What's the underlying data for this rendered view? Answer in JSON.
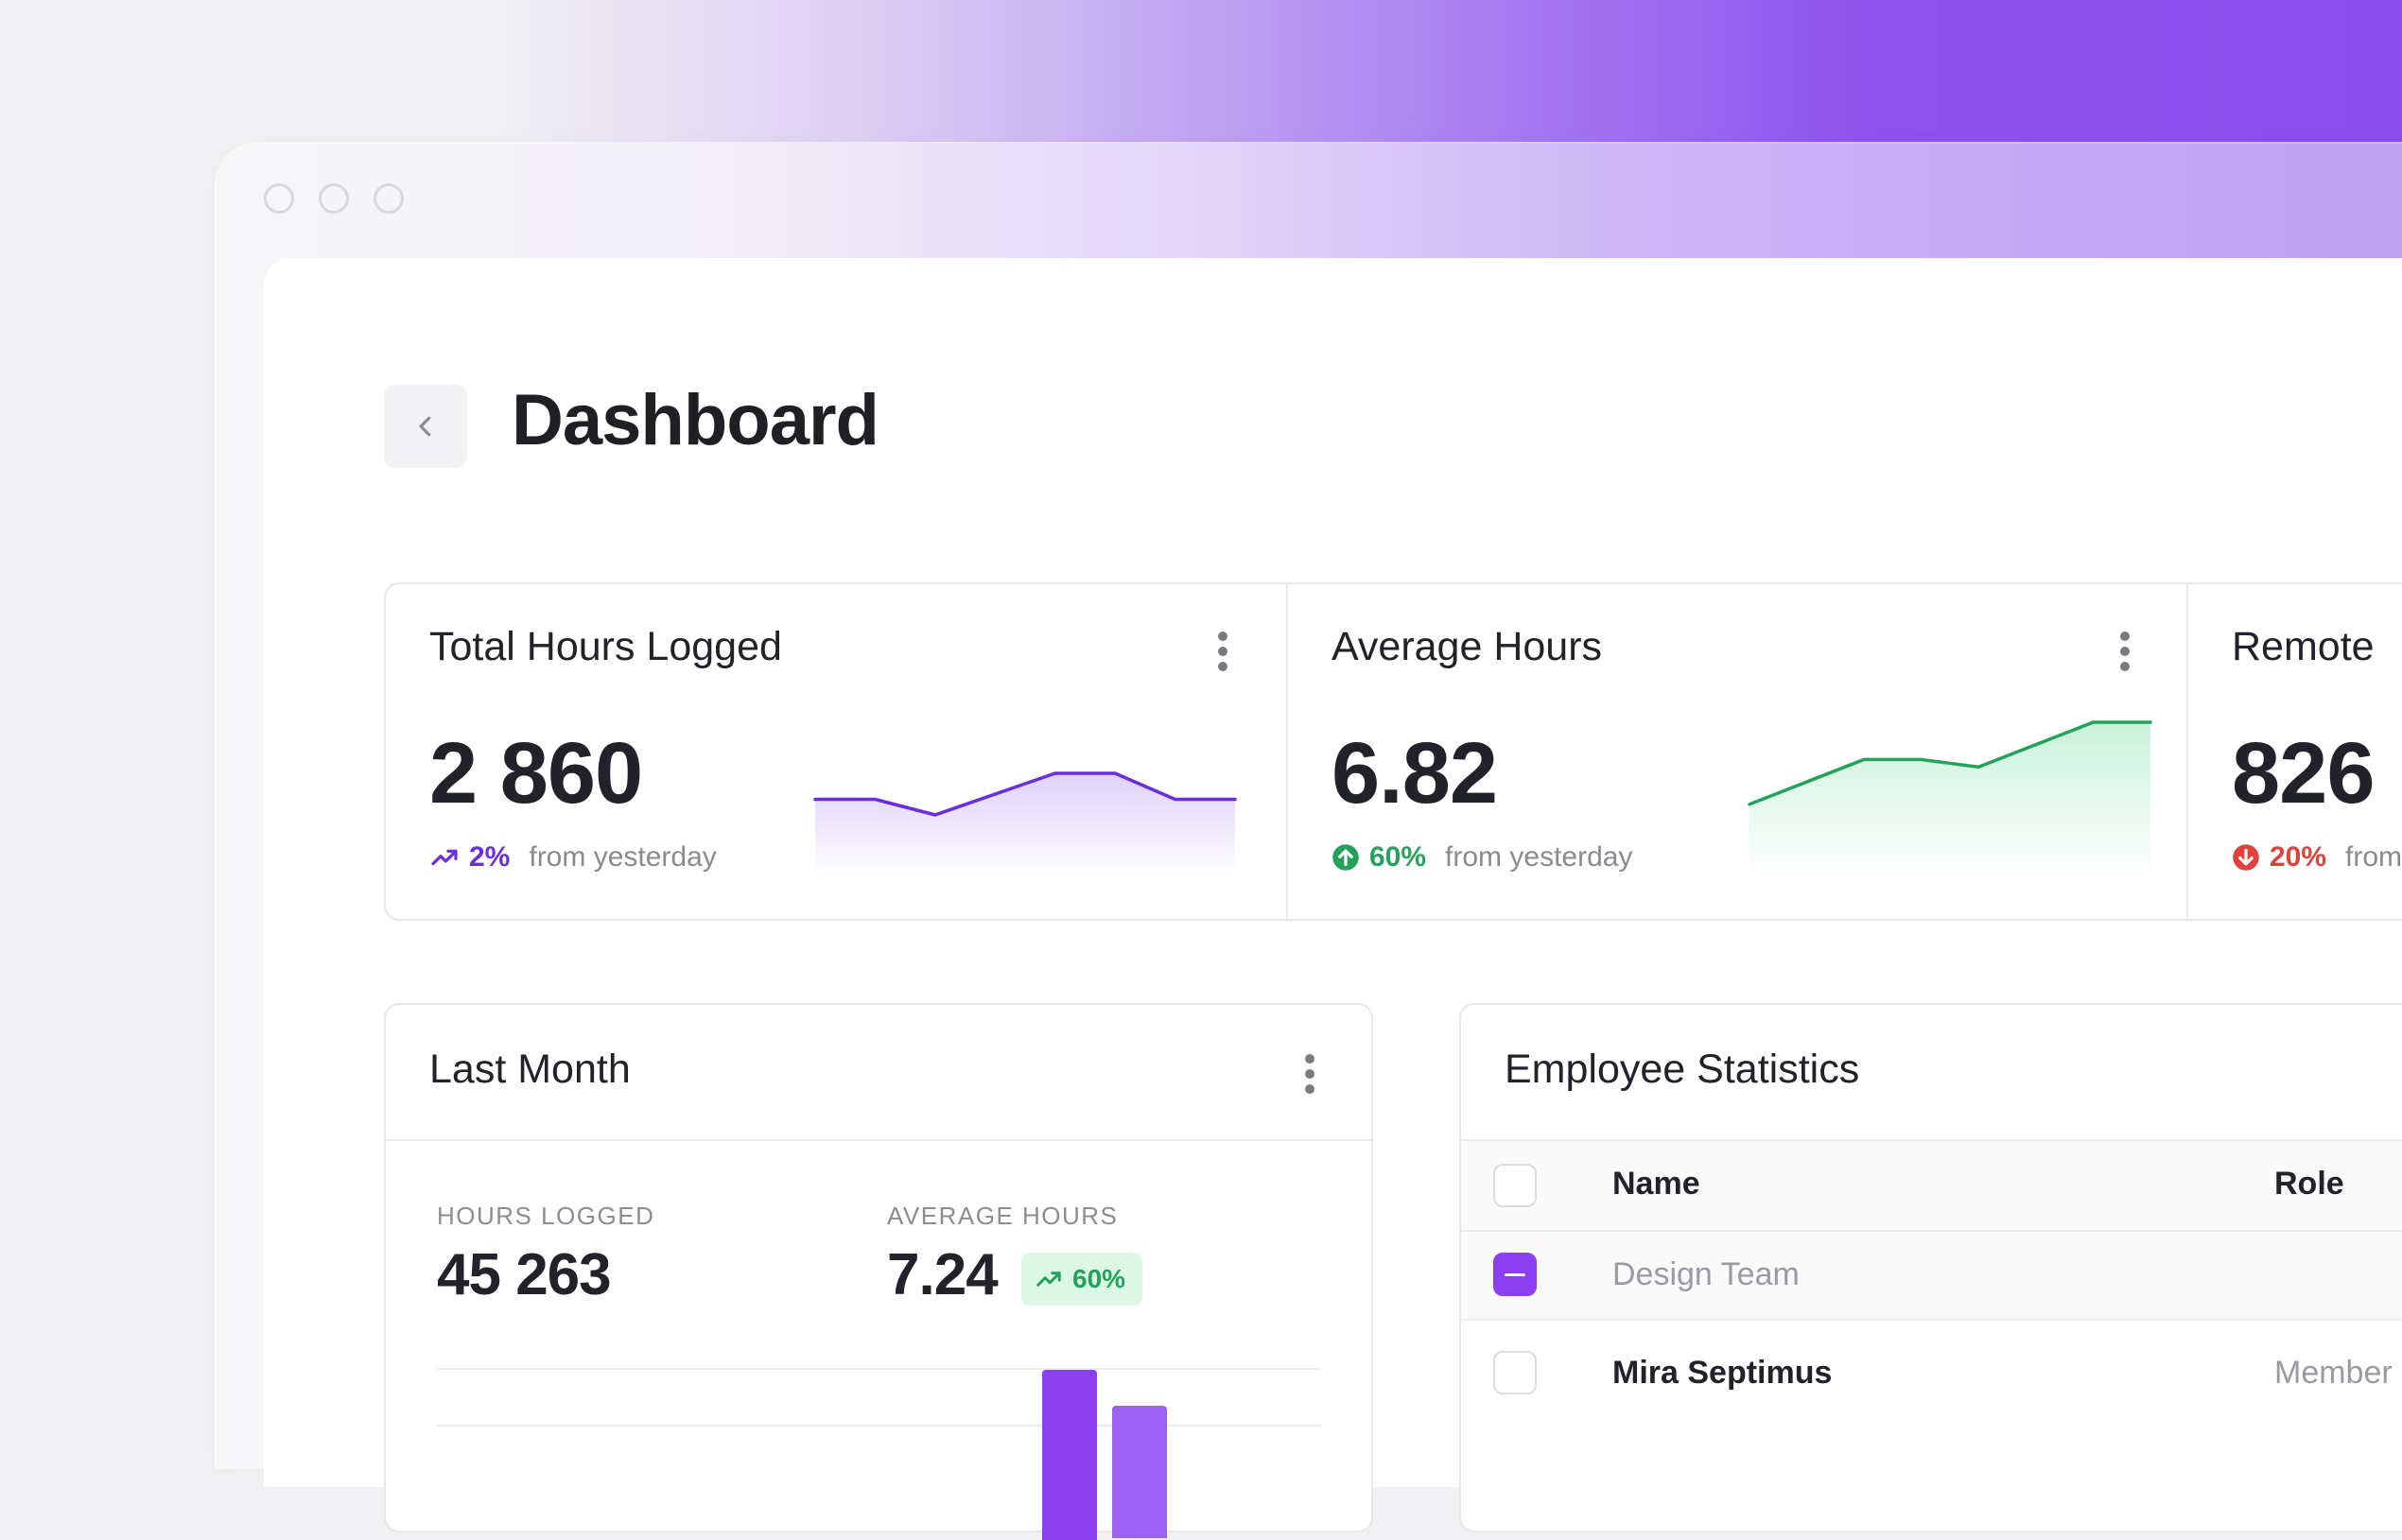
{
  "page": {
    "title": "Dashboard"
  },
  "colors": {
    "accent": "#8a3ff0",
    "positive": "#23a25a",
    "negative": "#e0413b"
  },
  "stats": [
    {
      "title": "Total Hours Logged",
      "value": "2 860",
      "change": "2%",
      "change_icon": "trend-up-icon",
      "trend": "up",
      "note": "from yesterday",
      "color": "#6a2ee0",
      "sparkline": [
        5,
        5,
        2,
        6,
        10,
        10,
        5,
        5
      ]
    },
    {
      "title": "Average Hours",
      "value": "6.82",
      "change": "60%",
      "change_icon": "arrow-up-circle-icon",
      "trend": "up",
      "note": "from yesterday",
      "color": "#23a25a",
      "sparkline": [
        1,
        4,
        7,
        7,
        6,
        9,
        12,
        12
      ]
    },
    {
      "title": "Remote",
      "value": "826",
      "change": "20%",
      "change_icon": "arrow-down-circle-icon",
      "trend": "down",
      "note": "from",
      "color": "#e0413b"
    }
  ],
  "last_month": {
    "title": "Last Month",
    "hours_label": "HOURS LOGGED",
    "hours_value": "45 263",
    "avg_label": "AVERAGE HOURS",
    "avg_value": "7.24",
    "avg_change": "60%"
  },
  "employee_stats": {
    "title": "Employee Statistics",
    "columns": [
      "Name",
      "Role"
    ],
    "rows": [
      {
        "name": "Design Team",
        "role": "",
        "type": "group",
        "checked": "partial"
      },
      {
        "name": "Mira Septimus",
        "role": "Member",
        "type": "person",
        "checked": "no"
      }
    ]
  }
}
